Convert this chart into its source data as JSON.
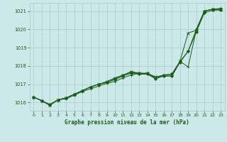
{
  "title": "Graphe pression niveau de la mer (hPa)",
  "bg_color": "#cce8e8",
  "grid_color": "#aacccc",
  "line_color": "#1a5c1a",
  "x_ticks": [
    0,
    1,
    2,
    3,
    4,
    5,
    6,
    7,
    8,
    9,
    10,
    11,
    12,
    13,
    14,
    15,
    16,
    17,
    18,
    19,
    20,
    21,
    22,
    23
  ],
  "y_ticks": [
    1016,
    1017,
    1018,
    1019,
    1020,
    1021
  ],
  "ylim": [
    1015.55,
    1021.45
  ],
  "xlim": [
    -0.5,
    23.5
  ],
  "series": [
    [
      1016.3,
      1016.1,
      1015.85,
      1016.15,
      1016.2,
      1016.4,
      1016.6,
      1016.75,
      1016.9,
      1017.05,
      1017.15,
      1017.35,
      1017.5,
      1017.6,
      1017.55,
      1017.35,
      1017.45,
      1017.45,
      1018.25,
      1017.95,
      1019.95,
      1021.0,
      1021.1,
      1021.1
    ],
    [
      1016.3,
      1016.1,
      1015.85,
      1016.15,
      1016.25,
      1016.45,
      1016.65,
      1016.85,
      1017.0,
      1017.15,
      1017.35,
      1017.5,
      1017.7,
      1017.6,
      1017.6,
      1017.4,
      1017.5,
      1017.55,
      1018.25,
      1019.8,
      1019.95,
      1021.0,
      1021.1,
      1021.1
    ],
    [
      1016.3,
      1016.1,
      1015.9,
      1016.15,
      1016.25,
      1016.45,
      1016.65,
      1016.85,
      1017.0,
      1017.1,
      1017.25,
      1017.45,
      1017.6,
      1017.55,
      1017.55,
      1017.3,
      1017.45,
      1017.45,
      1018.2,
      1018.8,
      1019.85,
      1020.9,
      1021.05,
      1021.05
    ],
    [
      1016.3,
      1016.1,
      1015.85,
      1016.15,
      1016.25,
      1016.45,
      1016.65,
      1016.85,
      1017.0,
      1017.1,
      1017.3,
      1017.5,
      1017.65,
      1017.6,
      1017.6,
      1017.35,
      1017.5,
      1017.55,
      1018.25,
      1018.8,
      1020.0,
      1021.0,
      1021.1,
      1021.15
    ]
  ]
}
